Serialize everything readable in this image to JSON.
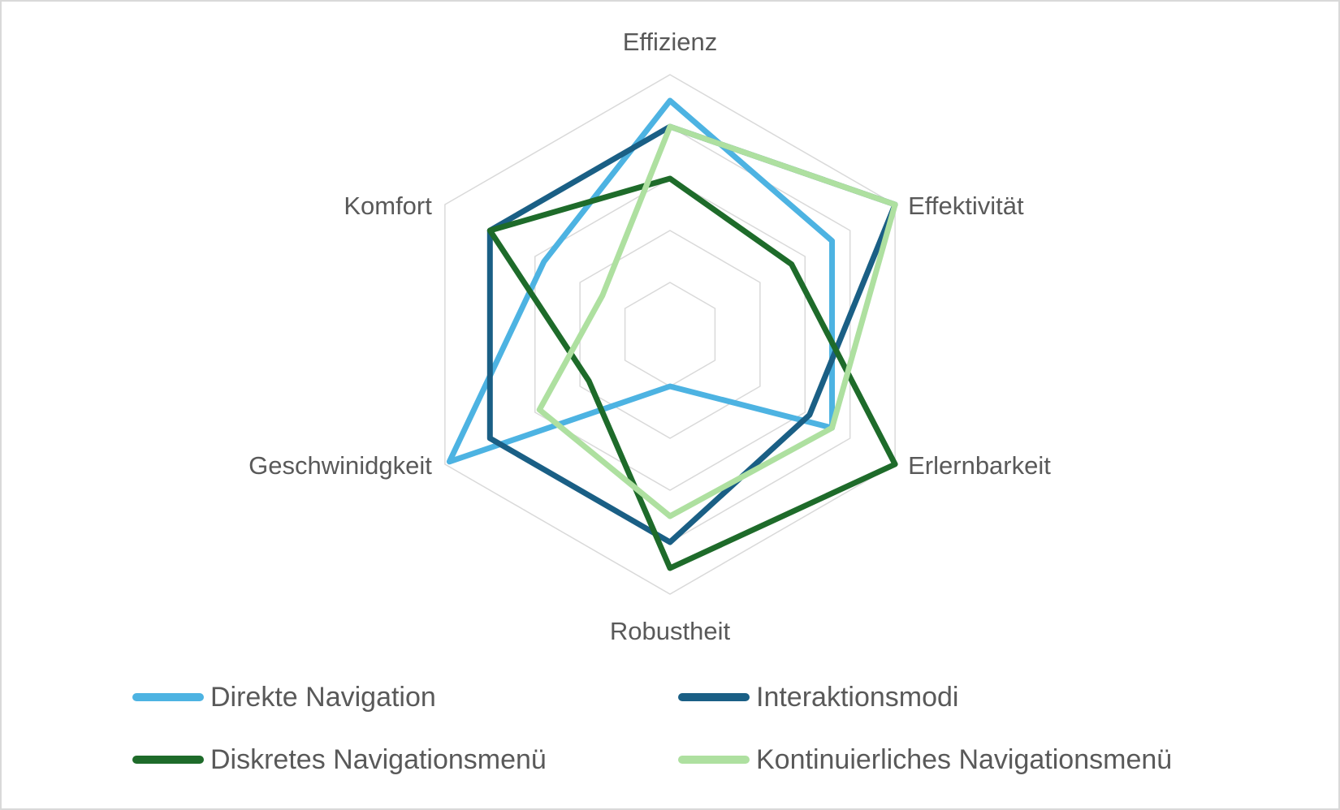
{
  "chart_data": {
    "type": "radar",
    "categories": [
      "Effizienz",
      "Effektivität",
      "Erlernbarkeit",
      "Robustheit",
      "Geschwinidgkeit",
      "Komfort"
    ],
    "rmax": 5,
    "grid_levels": [
      1,
      2,
      3,
      4,
      5
    ],
    "grid": true,
    "legend_position": "bottom",
    "series": [
      {
        "name": "Direkte Navigation",
        "color": "#4db3e2",
        "values": [
          4.5,
          3.6,
          3.6,
          1.0,
          4.9,
          2.8
        ]
      },
      {
        "name": "Interaktionsmodi",
        "color": "#1a5f85",
        "values": [
          4.0,
          5.0,
          3.1,
          4.0,
          4.0,
          4.0
        ]
      },
      {
        "name": "Diskretes Navigationsmenü",
        "color": "#1e6b2a",
        "values": [
          3.0,
          2.7,
          5.0,
          4.5,
          1.8,
          4.0
        ]
      },
      {
        "name": "Kontinuierliches Navigationsmenü",
        "color": "#aee0a0",
        "values": [
          4.0,
          5.0,
          3.6,
          3.5,
          2.9,
          1.5
        ]
      }
    ]
  }
}
